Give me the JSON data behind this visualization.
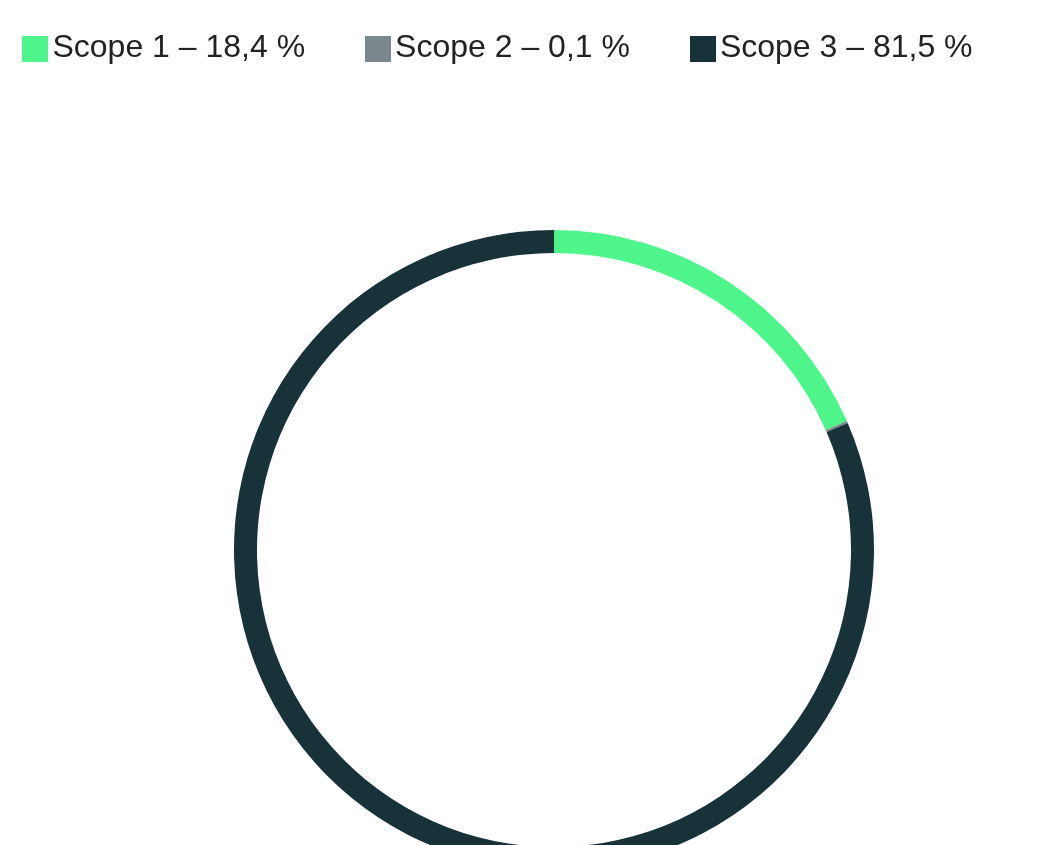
{
  "chart_data": {
    "type": "donut",
    "categories": [
      "Scope 1 – 18,4 %",
      "Scope 2 – 0,1 %",
      "Scope 3 – 81,5 %"
    ],
    "values": [
      18.4,
      0.1,
      81.5
    ],
    "colors": [
      "#4ef58a",
      "#7a878c",
      "#18323a"
    ],
    "legend": "top"
  }
}
